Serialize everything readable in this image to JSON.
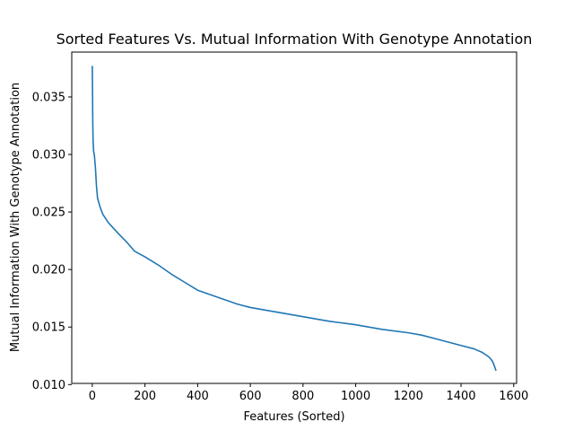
{
  "chart_data": {
    "type": "line",
    "title": "Sorted Features Vs. Mutual Information With Genotype Annotation",
    "xlabel": "Features (Sorted)",
    "ylabel": "Mutual Information With Genotype Annotation",
    "xlim": [
      -78,
      1611
    ],
    "ylim": [
      0.0101,
      0.0389
    ],
    "xticks": [
      0,
      200,
      400,
      600,
      800,
      1000,
      1200,
      1400,
      1600
    ],
    "xtick_labels": [
      "0",
      "200",
      "400",
      "600",
      "800",
      "1000",
      "1200",
      "1400",
      "1600"
    ],
    "yticks": [
      0.01,
      0.015,
      0.02,
      0.025,
      0.03,
      0.035
    ],
    "ytick_labels": [
      "0.010",
      "0.015",
      "0.020",
      "0.025",
      "0.030",
      "0.035"
    ],
    "grid": false,
    "legend": "none",
    "series": [
      {
        "color": "#1f77b4",
        "x": [
          0,
          1,
          2,
          3,
          5,
          8,
          12,
          16,
          20,
          30,
          40,
          60,
          80,
          100,
          130,
          160,
          200,
          250,
          300,
          350,
          400,
          450,
          500,
          550,
          600,
          700,
          800,
          900,
          1000,
          1100,
          1200,
          1250,
          1300,
          1350,
          1400,
          1450,
          1480,
          1500,
          1510,
          1520,
          1525,
          1530,
          1533
        ],
        "y": [
          0.0377,
          0.0352,
          0.0325,
          0.0312,
          0.0303,
          0.0299,
          0.0288,
          0.0272,
          0.0262,
          0.0254,
          0.0248,
          0.0241,
          0.0236,
          0.0231,
          0.0224,
          0.0216,
          0.0211,
          0.0204,
          0.0196,
          0.0189,
          0.0182,
          0.0178,
          0.0174,
          0.017,
          0.0167,
          0.0163,
          0.0159,
          0.0155,
          0.0152,
          0.0148,
          0.0145,
          0.0143,
          0.014,
          0.0137,
          0.0134,
          0.0131,
          0.0128,
          0.0125,
          0.0123,
          0.012,
          0.0117,
          0.0114,
          0.0112
        ]
      }
    ]
  }
}
